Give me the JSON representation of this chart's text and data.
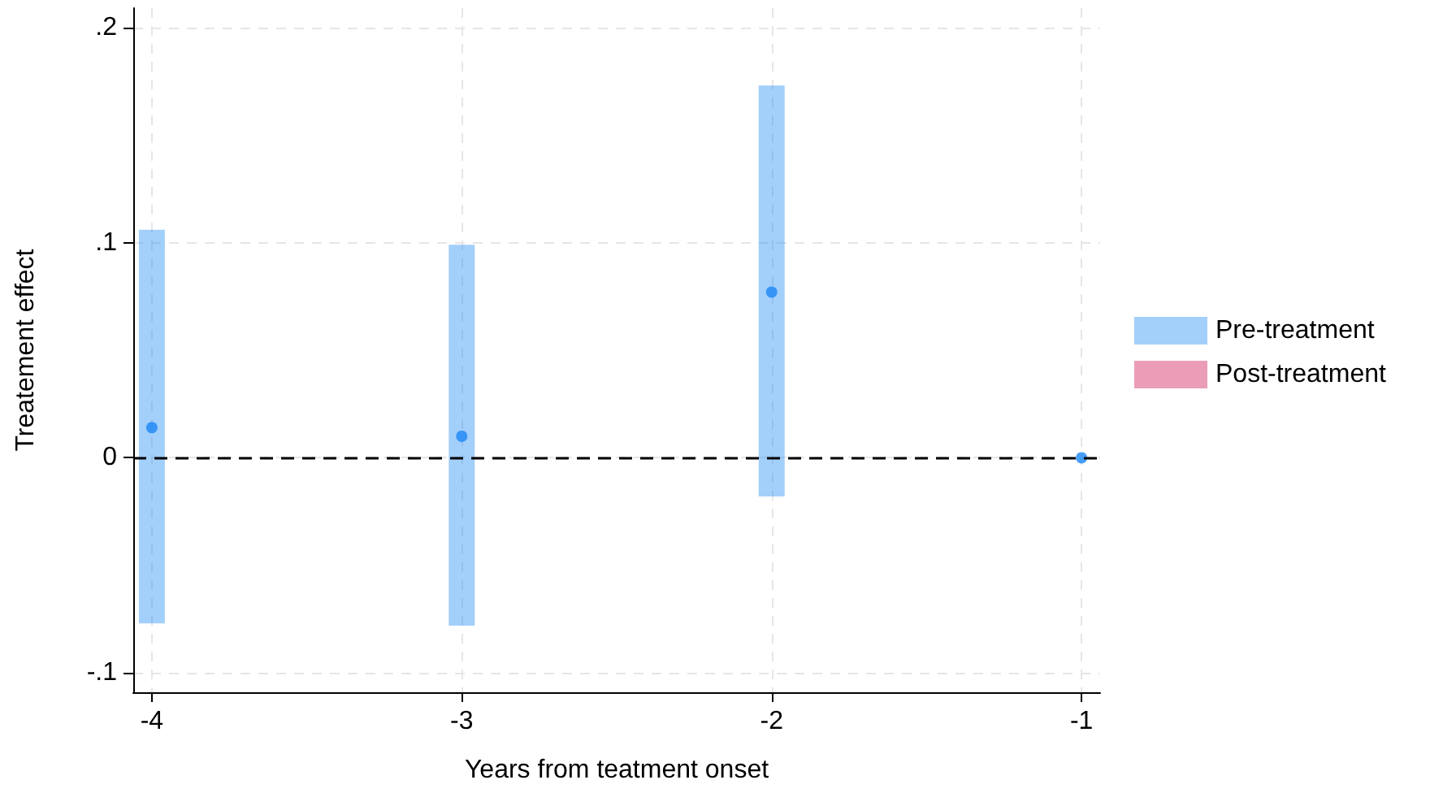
{
  "chart_data": {
    "type": "scatter",
    "xlabel": "Years from teatment onset",
    "ylabel": "Treatement effect",
    "x": [
      -4,
      -3,
      -2,
      -1
    ],
    "series": [
      {
        "name": "Pre-treatment",
        "color": "#1a86f5",
        "values": [
          0.014,
          0.01,
          0.077,
          0
        ],
        "errors": [
          [
            -0.077,
            0.106
          ],
          [
            -0.078,
            0.099
          ],
          [
            -0.018,
            0.173
          ],
          null
        ]
      },
      {
        "name": "Post-treatment",
        "color": "#cc0b4e",
        "values": [
          null,
          null,
          null,
          null
        ]
      }
    ],
    "xlim": [
      -4.06,
      -0.94
    ],
    "xticks": [
      -4,
      -3,
      -2,
      -1
    ],
    "ylim": [
      -0.109,
      0.209
    ],
    "yticks": [
      {
        "value": -0.1,
        "label": "-.1"
      },
      0,
      {
        "value": 0.1,
        "label": ".1"
      },
      {
        "value": 0.2,
        "label": ".2"
      }
    ],
    "ref_lines": [
      {
        "axis": "y",
        "value": 0,
        "color": "#000000",
        "line_style": "dashed"
      }
    ],
    "grid": true,
    "legend": "right",
    "marker": "circle"
  }
}
